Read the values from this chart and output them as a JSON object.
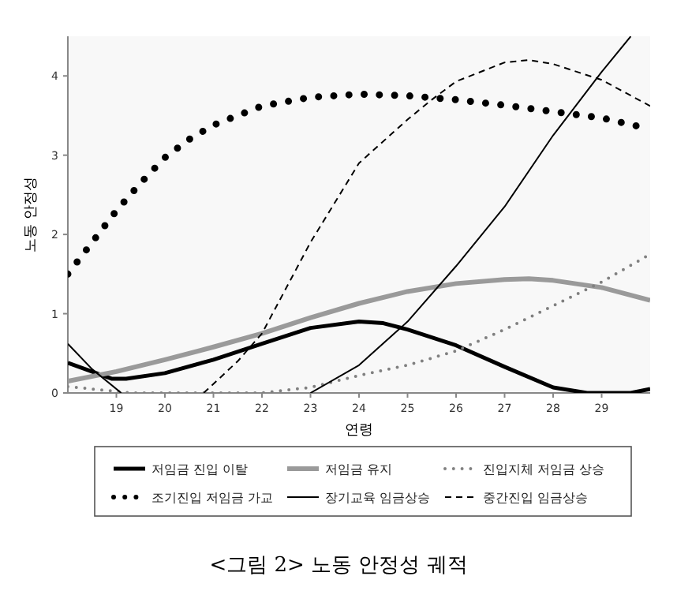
{
  "chart_data": {
    "type": "line",
    "title": "<그림 2> 노동 안정성 궤적",
    "xlabel": "연령",
    "ylabel": "노동 안정성",
    "xlim": [
      18,
      30
    ],
    "ylim": [
      0,
      4.5
    ],
    "xticks": [
      19,
      20,
      21,
      22,
      23,
      24,
      25,
      26,
      27,
      28,
      29
    ],
    "yticks": [
      0,
      1,
      2,
      3,
      4
    ],
    "grid": false,
    "legend": "bottom",
    "series": [
      {
        "name": "저임금 진입 이탈",
        "color": "#000000",
        "line_style": "solid",
        "x": [
          18,
          18.9,
          19.2,
          20,
          21,
          22,
          23,
          24,
          24.5,
          25,
          26,
          27,
          28,
          28.7,
          29.6,
          30
        ],
        "values": [
          0.38,
          0.18,
          0.18,
          0.25,
          0.42,
          0.62,
          0.82,
          0.9,
          0.88,
          0.8,
          0.6,
          0.33,
          0.07,
          0,
          0,
          0.05
        ]
      },
      {
        "name": "저임금 유지",
        "color": "#9a9a9a",
        "line_style": "solid",
        "x": [
          18,
          19,
          20,
          21,
          22,
          23,
          24,
          25,
          26,
          27,
          27.5,
          28,
          29,
          30
        ],
        "values": [
          0.15,
          0.27,
          0.42,
          0.58,
          0.75,
          0.95,
          1.13,
          1.28,
          1.38,
          1.43,
          1.44,
          1.42,
          1.33,
          1.17
        ]
      },
      {
        "name": "진입지체 저임금 상승",
        "color": "#808080",
        "line_style": "dotted",
        "x": [
          18,
          19,
          19.3,
          22,
          23,
          24,
          25,
          26,
          27,
          28,
          29,
          30
        ],
        "values": [
          0.08,
          0.02,
          0,
          0,
          0.07,
          0.22,
          0.35,
          0.53,
          0.8,
          1.1,
          1.4,
          1.75
        ]
      },
      {
        "name": "조기진입 저임금 가교",
        "color": "#000000",
        "line_style": "dotted",
        "x": [
          18,
          18.5,
          19,
          19.5,
          20,
          20.5,
          21,
          22,
          23,
          24,
          25,
          26,
          27,
          28,
          29,
          30
        ],
        "values": [
          1.5,
          1.9,
          2.3,
          2.65,
          2.97,
          3.2,
          3.38,
          3.62,
          3.73,
          3.77,
          3.75,
          3.7,
          3.63,
          3.55,
          3.47,
          3.33
        ]
      },
      {
        "name": "장기교육 임금상승",
        "color": "#000000",
        "line_style": "solid",
        "x": [
          18,
          18.5,
          19.1,
          null,
          23,
          24,
          25,
          26,
          27,
          28,
          29,
          29.6
        ],
        "values": [
          0.62,
          0.3,
          0,
          null,
          0,
          0.35,
          0.9,
          1.6,
          2.35,
          3.25,
          4.05,
          4.5
        ]
      },
      {
        "name": "중간진입 임금상승",
        "color": "#000000",
        "line_style": "dashed",
        "x": [
          20.8,
          21.5,
          22,
          23,
          24,
          25,
          25.5,
          26,
          27,
          27.5,
          28,
          29,
          30
        ],
        "values": [
          0,
          0.4,
          0.75,
          1.9,
          2.9,
          3.45,
          3.7,
          3.93,
          4.17,
          4.2,
          4.15,
          3.95,
          3.62
        ]
      }
    ]
  }
}
